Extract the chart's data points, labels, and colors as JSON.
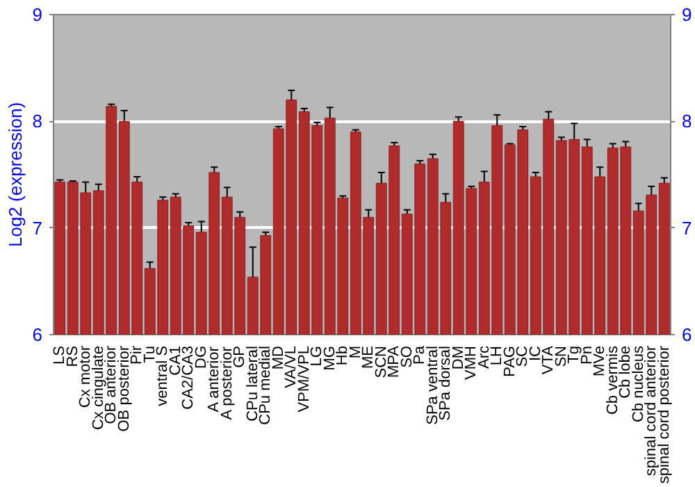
{
  "chart_data": {
    "type": "bar",
    "ylabel": "Log2 (expression)",
    "categories": [
      "LS",
      "RS",
      "Cx motor",
      "Cx cingulate",
      "OB anterior",
      "OB posterior",
      "Pir",
      "Tu",
      "ventral S",
      "CA1",
      "CA2/CA3",
      "DG",
      "A anterior",
      "A posterior",
      "GP",
      "CPu lateral",
      "CPu medial",
      "MD",
      "VA/VL",
      "VPM/VPL",
      "LG",
      "MG",
      "Hb",
      "M",
      "ME",
      "SCN",
      "MPA",
      "SO",
      "Pa",
      "SPa ventral",
      "SPa dorsal",
      "DM",
      "VMH",
      "Arc",
      "LH",
      "PAG",
      "SC",
      "IC",
      "VTA",
      "SN",
      "Tg",
      "Pn",
      "MVe",
      "Cb vermis",
      "Cb lobe",
      "Cb nucleus",
      "spinal cord anterior",
      "spinal cord posterior"
    ],
    "values": [
      7.43,
      7.43,
      7.33,
      7.35,
      8.14,
      8.0,
      7.43,
      6.62,
      7.26,
      7.29,
      7.02,
      6.96,
      7.52,
      7.29,
      7.1,
      6.54,
      6.93,
      7.93,
      8.2,
      8.09,
      7.96,
      8.03,
      7.28,
      7.9,
      7.1,
      7.42,
      7.77,
      7.13,
      7.6,
      7.65,
      7.24,
      8.0,
      7.37,
      7.43,
      7.96,
      7.78,
      7.92,
      7.48,
      8.02,
      7.82,
      7.83,
      7.76,
      7.48,
      7.75,
      7.76,
      7.16,
      7.31,
      7.42
    ],
    "errors": [
      0.02,
      0.01,
      0.1,
      0.06,
      0.02,
      0.1,
      0.05,
      0.06,
      0.03,
      0.03,
      0.03,
      0.1,
      0.05,
      0.09,
      0.05,
      0.28,
      0.03,
      0.02,
      0.09,
      0.03,
      0.03,
      0.1,
      0.02,
      0.02,
      0.07,
      0.1,
      0.03,
      0.04,
      0.03,
      0.04,
      0.08,
      0.04,
      0.02,
      0.1,
      0.1,
      0.01,
      0.03,
      0.04,
      0.07,
      0.03,
      0.15,
      0.07,
      0.09,
      0.04,
      0.05,
      0.07,
      0.08,
      0.05
    ],
    "color": "#b02c2c",
    "ylim": [
      6,
      9
    ],
    "yticks": [
      6,
      7,
      8,
      9
    ],
    "y2lim": [
      6,
      9
    ],
    "y2ticks": [
      6,
      7,
      8,
      9
    ],
    "grid": "y"
  }
}
